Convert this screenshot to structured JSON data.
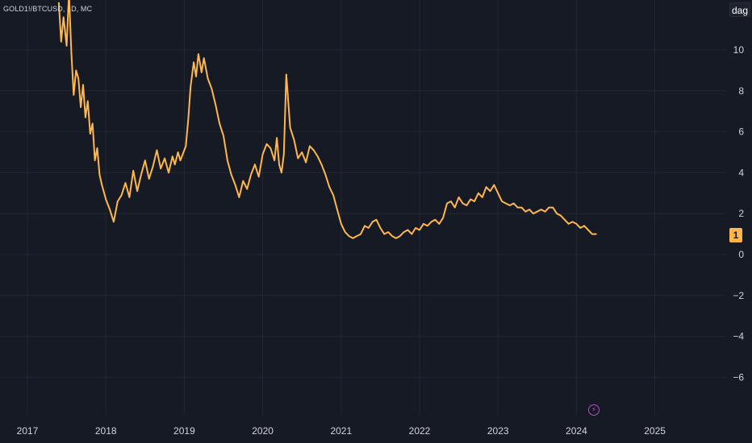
{
  "symbol_label": "GOLD1!/BTCUSD, 1D, MC",
  "unit_button": "dag",
  "last_value_label": "1",
  "event_icon": "lightning-icon",
  "colors": {
    "background": "#161a25",
    "grid": "#232733",
    "series": "#ffb74d",
    "axis_text": "#d1d4dc"
  },
  "chart_data": {
    "type": "line",
    "title": "",
    "xlabel": "",
    "ylabel": "",
    "x_ticks": [
      "2017",
      "2018",
      "2019",
      "2020",
      "2021",
      "2022",
      "2023",
      "2024",
      "2025"
    ],
    "y_ticks": [
      "10",
      "8",
      "6",
      "4",
      "2",
      "0",
      "−2",
      "−4",
      "−6"
    ],
    "ylim": [
      -6.8,
      12.4
    ],
    "grid": true,
    "series": [
      {
        "x": [
          2017.4,
          2017.43,
          2017.46,
          2017.5,
          2017.53,
          2017.56,
          2017.59,
          2017.62,
          2017.65,
          2017.68,
          2017.71,
          2017.74,
          2017.77,
          2017.8,
          2017.83,
          2017.86,
          2017.89,
          2017.92,
          2017.95,
          2018.0,
          2018.05,
          2018.1,
          2018.15,
          2018.2,
          2018.25,
          2018.3,
          2018.35,
          2018.4,
          2018.45,
          2018.5,
          2018.55,
          2018.6,
          2018.65,
          2018.7,
          2018.75,
          2018.8,
          2018.85,
          2018.88,
          2018.92,
          2018.95,
          2018.98,
          2019.02,
          2019.05,
          2019.08,
          2019.12,
          2019.15,
          2019.18,
          2019.22,
          2019.25,
          2019.3,
          2019.35,
          2019.4,
          2019.45,
          2019.5,
          2019.55,
          2019.6,
          2019.65,
          2019.7,
          2019.75,
          2019.8,
          2019.85,
          2019.9,
          2019.95,
          2020.0,
          2020.05,
          2020.1,
          2020.15,
          2020.18,
          2020.21,
          2020.24,
          2020.27,
          2020.3,
          2020.35,
          2020.4,
          2020.45,
          2020.5,
          2020.55,
          2020.6,
          2020.65,
          2020.7,
          2020.75,
          2020.8,
          2020.85,
          2020.9,
          2020.95,
          2021.0,
          2021.05,
          2021.1,
          2021.15,
          2021.2,
          2021.25,
          2021.3,
          2021.35,
          2021.4,
          2021.45,
          2021.5,
          2021.55,
          2021.6,
          2021.65,
          2021.7,
          2021.75,
          2021.8,
          2021.85,
          2021.9,
          2021.95,
          2022.0,
          2022.05,
          2022.1,
          2022.15,
          2022.2,
          2022.25,
          2022.3,
          2022.35,
          2022.4,
          2022.45,
          2022.5,
          2022.55,
          2022.6,
          2022.65,
          2022.7,
          2022.75,
          2022.8,
          2022.85,
          2022.9,
          2022.95,
          2023.0,
          2023.05,
          2023.1,
          2023.15,
          2023.2,
          2023.25,
          2023.3,
          2023.35,
          2023.4,
          2023.45,
          2023.5,
          2023.55,
          2023.6,
          2023.65,
          2023.7,
          2023.75,
          2023.8,
          2023.85,
          2023.9,
          2023.95,
          2024.0,
          2024.05,
          2024.1,
          2024.15,
          2024.2,
          2024.25
        ],
        "values": [
          12.3,
          10.4,
          11.6,
          10.2,
          12.8,
          9.9,
          7.8,
          9.0,
          8.6,
          7.2,
          8.3,
          6.7,
          7.5,
          5.9,
          6.4,
          4.6,
          5.2,
          3.9,
          3.4,
          2.7,
          2.2,
          1.6,
          2.6,
          2.9,
          3.5,
          2.8,
          4.1,
          3.1,
          3.9,
          4.6,
          3.7,
          4.3,
          5.1,
          4.2,
          4.7,
          4.0,
          4.8,
          4.4,
          5.0,
          4.6,
          4.9,
          5.3,
          6.6,
          8.2,
          9.4,
          8.7,
          9.8,
          8.9,
          9.6,
          8.6,
          8.1,
          7.3,
          6.4,
          5.8,
          4.6,
          3.9,
          3.4,
          2.8,
          3.6,
          3.2,
          3.9,
          4.4,
          3.8,
          4.9,
          5.4,
          5.2,
          4.6,
          5.7,
          4.4,
          4.0,
          4.9,
          8.8,
          6.2,
          5.6,
          4.7,
          5.0,
          4.5,
          5.3,
          5.1,
          4.8,
          4.4,
          3.9,
          3.3,
          2.9,
          2.2,
          1.5,
          1.1,
          0.9,
          0.8,
          0.9,
          1.0,
          1.4,
          1.3,
          1.6,
          1.7,
          1.3,
          1.0,
          1.1,
          0.9,
          0.8,
          0.9,
          1.1,
          1.2,
          1.0,
          1.3,
          1.2,
          1.5,
          1.4,
          1.6,
          1.7,
          1.5,
          1.8,
          2.5,
          2.6,
          2.3,
          2.8,
          2.5,
          2.4,
          2.7,
          2.6,
          3.0,
          2.8,
          3.3,
          3.1,
          3.4,
          3.0,
          2.6,
          2.5,
          2.4,
          2.5,
          2.3,
          2.3,
          2.1,
          2.2,
          2.0,
          2.1,
          2.2,
          2.1,
          2.3,
          2.3,
          2.0,
          1.9,
          1.7,
          1.5,
          1.6,
          1.5,
          1.3,
          1.4,
          1.2,
          1.0,
          1.0
        ]
      }
    ]
  }
}
